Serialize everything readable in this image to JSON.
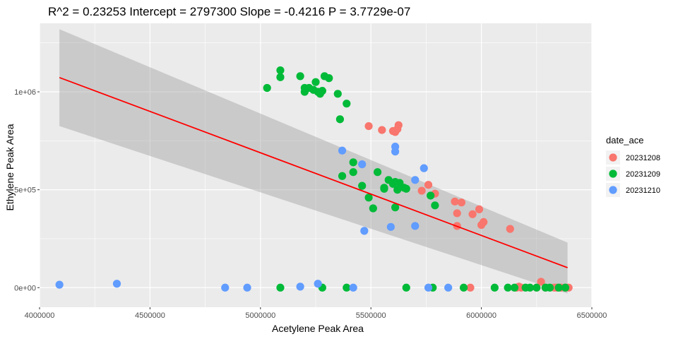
{
  "chart_data": {
    "type": "scatter",
    "title": "R^2 =  0.23253 Intercept = 2797300  Slope = -0.4216  P = 3.7729e-07",
    "xlabel": "Acetylene Peak Area",
    "ylabel": "Ethylene Peak Area",
    "xlim": [
      4000000,
      6500000
    ],
    "ylim": [
      -100000,
      1350000
    ],
    "x_ticks": [
      4000000,
      4500000,
      5000000,
      5500000,
      6000000,
      6500000
    ],
    "x_tick_labels": [
      "4000000",
      "4500000",
      "5000000",
      "5500000",
      "6000000",
      "6500000"
    ],
    "y_ticks": [
      0,
      500000,
      1000000
    ],
    "y_tick_labels": [
      "0e+00",
      "5e+05",
      "1e+06"
    ],
    "grid": true,
    "legend": {
      "title": "date_ace",
      "position": "right"
    },
    "series": [
      {
        "name": "20231208",
        "color": "#F8766D",
        "points": [
          [
            5490000,
            825000
          ],
          [
            5550000,
            805000
          ],
          [
            5600000,
            800000
          ],
          [
            5610000,
            795000
          ],
          [
            5620000,
            810000
          ],
          [
            5625000,
            830000
          ],
          [
            5730000,
            495000
          ],
          [
            5760000,
            525000
          ],
          [
            5790000,
            480000
          ],
          [
            5880000,
            440000
          ],
          [
            5890000,
            380000
          ],
          [
            5890000,
            315000
          ],
          [
            5910000,
            435000
          ],
          [
            5960000,
            375000
          ],
          [
            5990000,
            400000
          ],
          [
            6000000,
            320000
          ],
          [
            6010000,
            335000
          ],
          [
            6130000,
            300000
          ],
          [
            5950000,
            0
          ],
          [
            6160000,
            0
          ],
          [
            6170000,
            5000
          ],
          [
            6180000,
            0
          ],
          [
            6250000,
            0
          ],
          [
            6270000,
            30000
          ],
          [
            6290000,
            0
          ],
          [
            6330000,
            0
          ],
          [
            6340000,
            0
          ],
          [
            6360000,
            0
          ],
          [
            6380000,
            0
          ],
          [
            6395000,
            0
          ]
        ]
      },
      {
        "name": "20231209",
        "color": "#00BA38",
        "points": [
          [
            5030000,
            1020000
          ],
          [
            5090000,
            1075000
          ],
          [
            5090000,
            1110000
          ],
          [
            5180000,
            1080000
          ],
          [
            5200000,
            1000000
          ],
          [
            5200000,
            1020000
          ],
          [
            5220000,
            1020000
          ],
          [
            5240000,
            1010000
          ],
          [
            5250000,
            1050000
          ],
          [
            5260000,
            1000000
          ],
          [
            5270000,
            990000
          ],
          [
            5280000,
            1005000
          ],
          [
            5290000,
            1080000
          ],
          [
            5310000,
            1070000
          ],
          [
            5350000,
            990000
          ],
          [
            5360000,
            860000
          ],
          [
            5390000,
            940000
          ],
          [
            5370000,
            570000
          ],
          [
            5420000,
            640000
          ],
          [
            5420000,
            590000
          ],
          [
            5460000,
            520000
          ],
          [
            5490000,
            460000
          ],
          [
            5510000,
            405000
          ],
          [
            5530000,
            590000
          ],
          [
            5560000,
            505000
          ],
          [
            5560000,
            510000
          ],
          [
            5580000,
            550000
          ],
          [
            5600000,
            530000
          ],
          [
            5610000,
            540000
          ],
          [
            5610000,
            410000
          ],
          [
            5620000,
            500000
          ],
          [
            5630000,
            535000
          ],
          [
            5650000,
            510000
          ],
          [
            5660000,
            505000
          ],
          [
            5770000,
            470000
          ],
          [
            5790000,
            420000
          ],
          [
            5090000,
            0
          ],
          [
            5280000,
            0
          ],
          [
            5390000,
            0
          ],
          [
            5660000,
            0
          ],
          [
            5780000,
            0
          ],
          [
            5920000,
            0
          ],
          [
            6060000,
            0
          ],
          [
            6120000,
            0
          ],
          [
            6150000,
            0
          ],
          [
            6200000,
            0
          ],
          [
            6220000,
            0
          ],
          [
            6250000,
            0
          ],
          [
            6290000,
            0
          ],
          [
            6310000,
            0
          ],
          [
            6350000,
            0
          ],
          [
            6380000,
            0
          ]
        ]
      },
      {
        "name": "20231210",
        "color": "#619CFF",
        "points": [
          [
            4090000,
            15000
          ],
          [
            4350000,
            20000
          ],
          [
            4840000,
            0
          ],
          [
            4940000,
            0
          ],
          [
            5180000,
            5000
          ],
          [
            5260000,
            20000
          ],
          [
            5420000,
            0
          ],
          [
            5370000,
            700000
          ],
          [
            5460000,
            630000
          ],
          [
            5470000,
            290000
          ],
          [
            5590000,
            310000
          ],
          [
            5610000,
            720000
          ],
          [
            5610000,
            695000
          ],
          [
            5700000,
            550000
          ],
          [
            5700000,
            315000
          ],
          [
            5740000,
            610000
          ],
          [
            5760000,
            0
          ],
          [
            5850000,
            0
          ]
        ]
      }
    ],
    "regression_line": {
      "color": "#FF0000",
      "points": [
        [
          4090000,
          1073000
        ],
        [
          6390000,
          102000
        ]
      ]
    },
    "confidence_band": {
      "color": "#999999",
      "upper": [
        [
          4090000,
          1320000
        ],
        [
          6390000,
          230000
        ]
      ],
      "lower": [
        [
          4090000,
          825000
        ],
        [
          6390000,
          -30000
        ]
      ]
    }
  }
}
